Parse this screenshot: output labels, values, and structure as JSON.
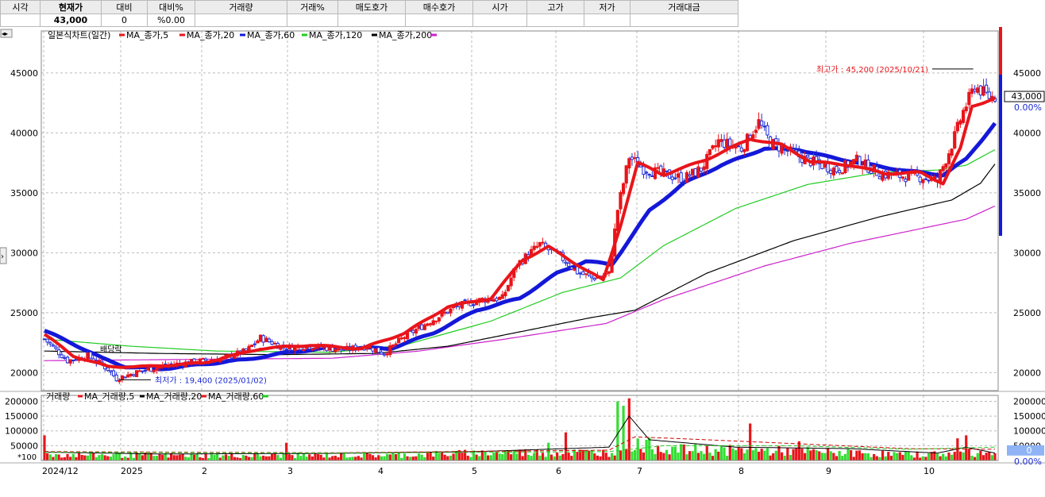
{
  "quote_bar": {
    "headers": [
      "시각",
      "현재가",
      "대비",
      "대비%",
      "거래량",
      "거래%",
      "매도호가",
      "매수호가",
      "시가",
      "고가",
      "저가",
      "거래대금"
    ],
    "values": [
      "",
      "43,000",
      "0",
      "%0.00",
      "",
      "",
      "",
      "",
      "",
      "",
      "",
      ""
    ]
  },
  "chart_data": [
    {
      "type": "candlestick",
      "title": "일본식차트(일간)",
      "legend": [
        "MA_종가,5",
        "MA_종가,20",
        "MA_종가,60",
        "MA_종가,120",
        "MA_종가,200"
      ],
      "colors": {
        "up": "#e8151b",
        "down": "#1d2bd6",
        "ma5": "#e8151b",
        "ma20": "#e8151b",
        "ma60": "#1418d8",
        "ma120": "#22cc22",
        "ma200": "#000000",
        "ma_extra": "#cc22cc"
      },
      "ylim": [
        18500,
        48500
      ],
      "yticks": [
        "20000",
        "25000",
        "30000",
        "35000",
        "40000",
        "45000"
      ],
      "xtick_labels": [
        "2024/12",
        "2025",
        "2",
        "3",
        "4",
        "5",
        "6",
        "7",
        "8",
        "9",
        "10"
      ],
      "last_price_label": "43,000",
      "last_change_pct": "0.00%",
      "annotations": {
        "high": "최고가 : 45,200 (2025/10/21)",
        "low": "최저가 : 19,400 (2025/01/02)",
        "dividend": "배당락"
      },
      "ohlc_anchors": [
        [
          0,
          22800
        ],
        [
          8,
          21000
        ],
        [
          15,
          21400
        ],
        [
          22,
          20300
        ],
        [
          25,
          19500
        ],
        [
          33,
          20100
        ],
        [
          42,
          20600
        ],
        [
          52,
          20900
        ],
        [
          62,
          21200
        ],
        [
          70,
          21800
        ],
        [
          75,
          22900
        ],
        [
          83,
          22100
        ],
        [
          92,
          22200
        ],
        [
          104,
          21900
        ],
        [
          112,
          22200
        ],
        [
          118,
          21600
        ],
        [
          125,
          23000
        ],
        [
          134,
          24300
        ],
        [
          143,
          25500
        ],
        [
          152,
          26100
        ],
        [
          159,
          26200
        ],
        [
          164,
          29000
        ],
        [
          172,
          30700
        ],
        [
          180,
          29500
        ],
        [
          185,
          28400
        ],
        [
          190,
          27900
        ],
        [
          196,
          28200
        ],
        [
          199,
          33600
        ],
        [
          203,
          38000
        ],
        [
          208,
          37000
        ],
        [
          214,
          36600
        ],
        [
          222,
          36200
        ],
        [
          228,
          37000
        ],
        [
          234,
          39300
        ],
        [
          242,
          38700
        ],
        [
          248,
          40900
        ],
        [
          252,
          39200
        ],
        [
          258,
          38500
        ],
        [
          265,
          37700
        ],
        [
          275,
          36900
        ],
        [
          282,
          37700
        ],
        [
          290,
          36600
        ],
        [
          297,
          36400
        ],
        [
          305,
          36300
        ],
        [
          310,
          36000
        ],
        [
          315,
          39000
        ],
        [
          319,
          41800
        ],
        [
          323,
          43900
        ],
        [
          328,
          43000
        ]
      ],
      "ma60_anchors": [
        [
          0,
          23500
        ],
        [
          10,
          22400
        ],
        [
          20,
          21200
        ],
        [
          28,
          20500
        ],
        [
          40,
          20300
        ],
        [
          55,
          20700
        ],
        [
          70,
          21100
        ],
        [
          85,
          21700
        ],
        [
          100,
          22100
        ],
        [
          120,
          22000
        ],
        [
          135,
          23300
        ],
        [
          150,
          25200
        ],
        [
          165,
          26200
        ],
        [
          178,
          28300
        ],
        [
          188,
          29300
        ],
        [
          197,
          29000
        ],
        [
          210,
          33500
        ],
        [
          222,
          35800
        ],
        [
          235,
          37300
        ],
        [
          250,
          38700
        ],
        [
          262,
          38600
        ],
        [
          272,
          38000
        ],
        [
          285,
          37400
        ],
        [
          300,
          36800
        ],
        [
          312,
          36500
        ],
        [
          320,
          37800
        ],
        [
          330,
          40800
        ]
      ],
      "ma20_anchors": [
        [
          0,
          23200
        ],
        [
          10,
          21400
        ],
        [
          22,
          20500
        ],
        [
          35,
          20500
        ],
        [
          55,
          20800
        ],
        [
          75,
          22000
        ],
        [
          92,
          22300
        ],
        [
          110,
          22000
        ],
        [
          125,
          23300
        ],
        [
          140,
          25500
        ],
        [
          155,
          26200
        ],
        [
          166,
          29400
        ],
        [
          175,
          30500
        ],
        [
          185,
          29000
        ],
        [
          194,
          27700
        ],
        [
          200,
          32300
        ],
        [
          206,
          37500
        ],
        [
          215,
          36500
        ],
        [
          230,
          37800
        ],
        [
          245,
          39500
        ],
        [
          256,
          39000
        ],
        [
          266,
          37600
        ],
        [
          280,
          37300
        ],
        [
          292,
          36600
        ],
        [
          304,
          36700
        ],
        [
          312,
          35800
        ],
        [
          318,
          38700
        ],
        [
          322,
          42200
        ],
        [
          330,
          42900
        ]
      ],
      "ma120_anchors": [
        [
          0,
          22800
        ],
        [
          30,
          22200
        ],
        [
          60,
          21800
        ],
        [
          100,
          21700
        ],
        [
          125,
          22300
        ],
        [
          155,
          24300
        ],
        [
          180,
          26700
        ],
        [
          200,
          27900
        ],
        [
          215,
          30600
        ],
        [
          240,
          33700
        ],
        [
          265,
          35700
        ],
        [
          290,
          36700
        ],
        [
          310,
          36900
        ],
        [
          320,
          37300
        ],
        [
          330,
          38600
        ]
      ],
      "ma200_anchors": [
        [
          0,
          21800
        ],
        [
          40,
          21600
        ],
        [
          80,
          21500
        ],
        [
          115,
          21600
        ],
        [
          140,
          22200
        ],
        [
          165,
          23400
        ],
        [
          190,
          24600
        ],
        [
          205,
          25200
        ],
        [
          230,
          28300
        ],
        [
          260,
          31000
        ],
        [
          290,
          33000
        ],
        [
          315,
          34400
        ],
        [
          325,
          35800
        ],
        [
          330,
          37400
        ]
      ],
      "ma_extra_anchors": [
        [
          0,
          21000
        ],
        [
          50,
          21100
        ],
        [
          100,
          21200
        ],
        [
          130,
          21800
        ],
        [
          160,
          22800
        ],
        [
          195,
          24100
        ],
        [
          215,
          26100
        ],
        [
          250,
          28900
        ],
        [
          280,
          30800
        ],
        [
          310,
          32300
        ],
        [
          320,
          32800
        ],
        [
          330,
          33900
        ]
      ]
    },
    {
      "type": "bar",
      "title": "거래량",
      "legend": [
        "MA_거래량,5",
        "MA_거래량,20",
        "MA_거래량,60"
      ],
      "ylim": [
        0,
        220000
      ],
      "yticks": [
        "50000",
        "100000",
        "150000",
        "200000"
      ],
      "unit_label": "*100",
      "last_volume_label": "0",
      "last_volume_pct": "0.00%",
      "peaks": [
        [
          0,
          85000
        ],
        [
          84,
          60000
        ],
        [
          175,
          60000
        ],
        [
          181,
          95000
        ],
        [
          199,
          200000
        ],
        [
          201,
          185000
        ],
        [
          203,
          210000
        ],
        [
          209,
          70000
        ],
        [
          226,
          55000
        ],
        [
          245,
          125000
        ],
        [
          262,
          65000
        ],
        [
          317,
          75000
        ],
        [
          320,
          85000
        ]
      ]
    }
  ]
}
